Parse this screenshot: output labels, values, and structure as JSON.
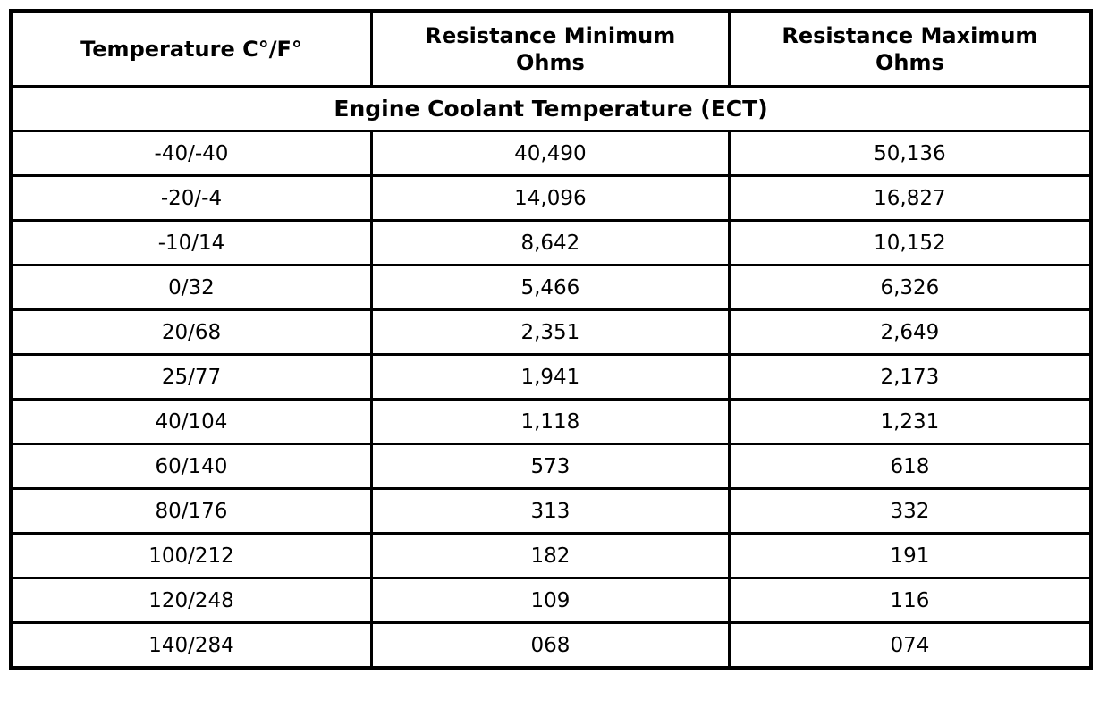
{
  "table": {
    "columns": [
      "Temperature C°/F°",
      "Resistance Minimum\nOhms",
      "Resistance Maximum\nOhms"
    ],
    "section_title": "Engine Coolant Temperature (ECT)",
    "rows": [
      {
        "temp": "-40/-40",
        "min": "40,490",
        "max": "50,136"
      },
      {
        "temp": "-20/-4",
        "min": "14,096",
        "max": "16,827"
      },
      {
        "temp": "-10/14",
        "min": "8,642",
        "max": "10,152"
      },
      {
        "temp": "0/32",
        "min": "5,466",
        "max": "6,326"
      },
      {
        "temp": "20/68",
        "min": "2,351",
        "max": "2,649"
      },
      {
        "temp": "25/77",
        "min": "1,941",
        "max": "2,173"
      },
      {
        "temp": "40/104",
        "min": "1,118",
        "max": "1,231"
      },
      {
        "temp": "60/140",
        "min": "573",
        "max": "618"
      },
      {
        "temp": "80/176",
        "min": "313",
        "max": "332"
      },
      {
        "temp": "100/212",
        "min": "182",
        "max": "191"
      },
      {
        "temp": "120/248",
        "min": "109",
        "max": "116"
      },
      {
        "temp": "140/284",
        "min": "068",
        "max": "074"
      }
    ],
    "colors": {
      "border": "#000000",
      "background": "#ffffff",
      "text": "#000000"
    }
  }
}
